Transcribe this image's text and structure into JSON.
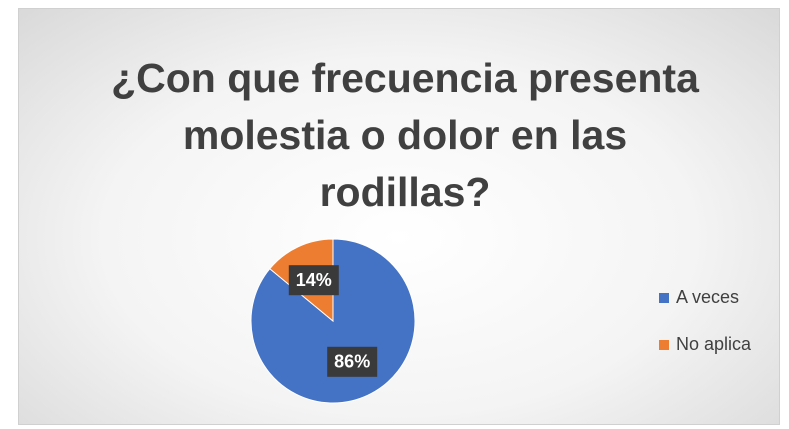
{
  "chart_data": {
    "type": "pie",
    "title": "¿Con que frecuencia presenta molestia o dolor en las rodillas?",
    "categories": [
      "A veces",
      "No aplica"
    ],
    "values": [
      86,
      14
    ],
    "value_labels": [
      "86%",
      "14%"
    ],
    "colors": [
      "#4472c4",
      "#ed7d31"
    ],
    "legend": "right"
  }
}
